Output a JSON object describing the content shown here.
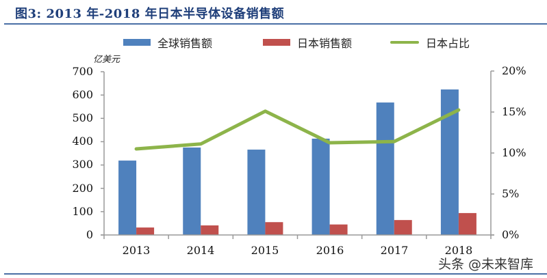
{
  "title": "图3: 2013 年-2018 年日本半导体设备销售额",
  "watermark": "头条 @未来智库",
  "colors": {
    "global_bar": "#4f81bd",
    "japan_bar": "#c0504d",
    "japan_share_line": "#8db44a",
    "axis": "#999999",
    "title": "#1f3f7a",
    "rule": "#4a6fa5"
  },
  "legend": {
    "items": [
      {
        "label": "全球销售额",
        "type": "bar",
        "color": "#4f81bd"
      },
      {
        "label": "日本销售额",
        "type": "bar",
        "color": "#c0504d"
      },
      {
        "label": "日本占比",
        "type": "line",
        "color": "#8db44a"
      }
    ]
  },
  "axes": {
    "left_unit": "亿美元",
    "left_ticks": [
      "700",
      "600",
      "500",
      "400",
      "300",
      "200",
      "100",
      "0"
    ],
    "right_ticks": [
      "20%",
      "15%",
      "10%",
      "5%",
      "0%"
    ],
    "x_ticks": [
      "2013",
      "2014",
      "2015",
      "2016",
      "2017",
      "2018"
    ]
  },
  "chart_data": {
    "type": "bar",
    "title": "图3: 2013 年-2018 年日本半导体设备销售额",
    "categories": [
      "2013",
      "2014",
      "2015",
      "2016",
      "2017",
      "2018"
    ],
    "series": [
      {
        "name": "全球销售额",
        "type": "bar",
        "axis": "left",
        "values": [
          319,
          375,
          366,
          413,
          568,
          624
        ]
      },
      {
        "name": "日本销售额",
        "type": "bar",
        "axis": "left",
        "values": [
          32,
          41,
          55,
          45,
          64,
          94
        ]
      },
      {
        "name": "日本占比",
        "type": "line",
        "axis": "right",
        "values": [
          10.5,
          11.1,
          15.1,
          11.25,
          11.4,
          15.25
        ]
      }
    ],
    "xlabel": "",
    "ylabel": "亿美元",
    "ylim": [
      0,
      700
    ],
    "y2label": "",
    "y2lim": [
      0,
      20
    ],
    "y2format": "percent",
    "legend_position": "top",
    "grid": false
  }
}
